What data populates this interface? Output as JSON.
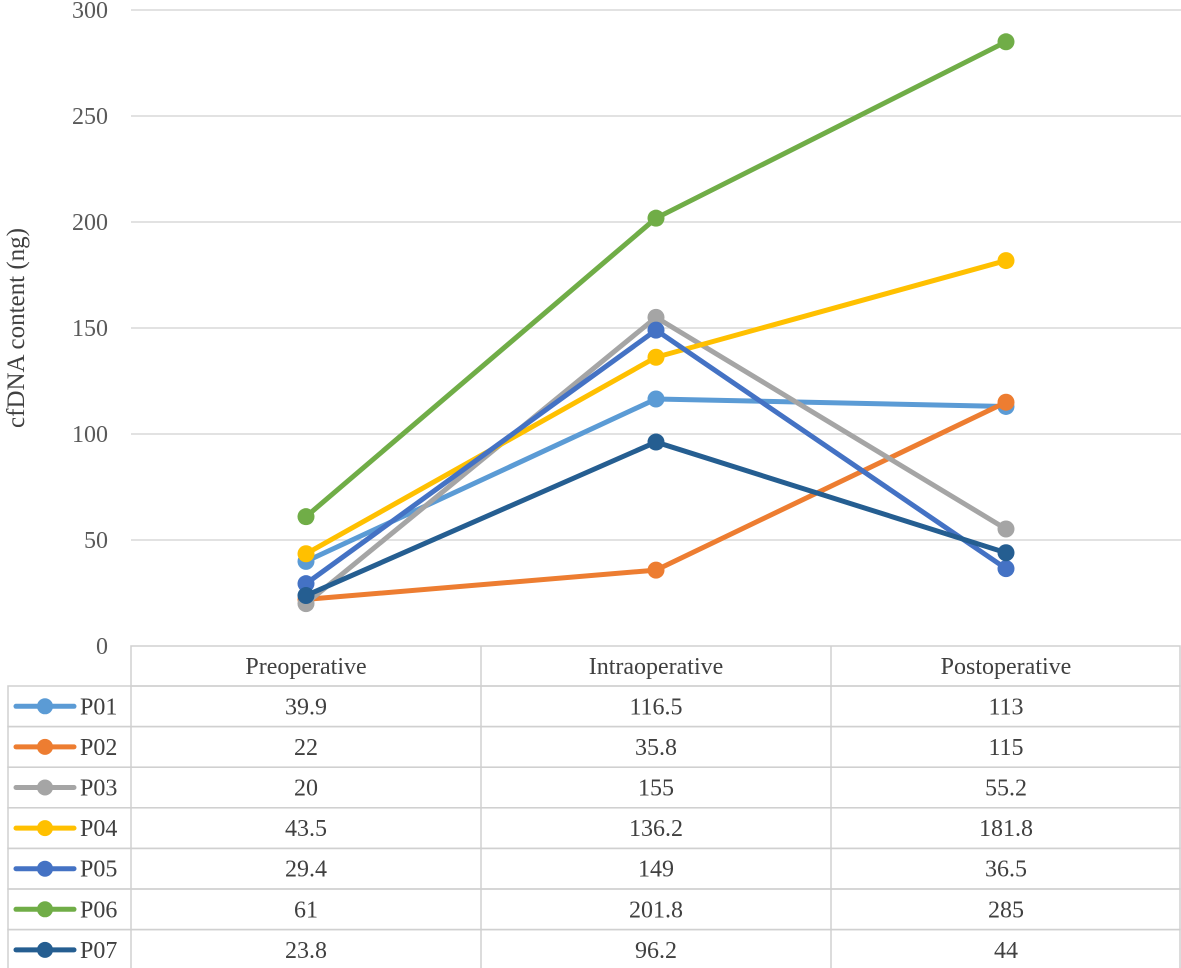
{
  "chart_data": {
    "type": "line",
    "ylabel": "cfDNA content  (ng)",
    "ylim": [
      0,
      300
    ],
    "yticks": [
      0,
      50,
      100,
      150,
      200,
      250,
      300
    ],
    "categories": [
      "Preoperative",
      "Intraoperative",
      "Postoperative"
    ],
    "grid": true,
    "legend": "data-table-below",
    "series": [
      {
        "name": "P01",
        "color": "#5B9BD5",
        "values": [
          39.9,
          116.5,
          113
        ]
      },
      {
        "name": "P02",
        "color": "#ED7D31",
        "values": [
          22,
          35.8,
          115
        ]
      },
      {
        "name": "P03",
        "color": "#A5A5A5",
        "values": [
          20,
          155,
          55.2
        ]
      },
      {
        "name": "P04",
        "color": "#FFC000",
        "values": [
          43.5,
          136.2,
          181.8
        ]
      },
      {
        "name": "P05",
        "color": "#4472C4",
        "values": [
          29.4,
          149,
          36.5
        ]
      },
      {
        "name": "P06",
        "color": "#70AD47",
        "values": [
          61,
          201.8,
          285
        ]
      },
      {
        "name": "P07",
        "color": "#255E91",
        "values": [
          23.8,
          96.2,
          44
        ]
      }
    ]
  }
}
